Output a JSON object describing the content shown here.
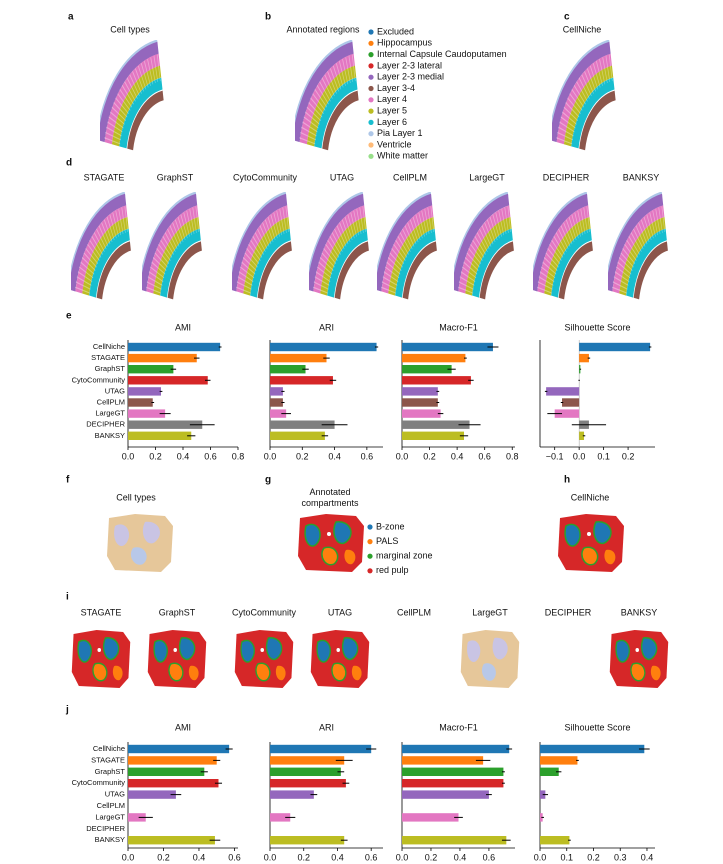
{
  "panel_a": {
    "letter": "a",
    "title": "Cell types"
  },
  "panel_b": {
    "letter": "b",
    "title": "Annotated regions",
    "legend": [
      {
        "name": "Excluded",
        "color": "#1f77b4"
      },
      {
        "name": "Hippocampus",
        "color": "#ff7f0e"
      },
      {
        "name": "Internal Capsule Caudoputamen",
        "color": "#2ca02c"
      },
      {
        "name": "Layer 2-3 lateral",
        "color": "#d62728"
      },
      {
        "name": "Layer 2-3 medial",
        "color": "#9467bd"
      },
      {
        "name": "Layer 3-4",
        "color": "#8c564b"
      },
      {
        "name": "Layer 4",
        "color": "#e377c2"
      },
      {
        "name": "Layer 5",
        "color": "#bcbd22"
      },
      {
        "name": "Layer 6",
        "color": "#17becf"
      },
      {
        "name": "Pia Layer 1",
        "color": "#aec7e8"
      },
      {
        "name": "Ventricle",
        "color": "#ffbb78"
      },
      {
        "name": "White matter",
        "color": "#98df8a"
      }
    ]
  },
  "panel_c": {
    "letter": "c",
    "title": "CellNiche"
  },
  "panel_d": {
    "letter": "d",
    "methods": [
      "STAGATE",
      "GraphST",
      "CytoCommunity",
      "UTAG",
      "CellPLM",
      "LargeGT",
      "DECIPHER",
      "BANKSY"
    ]
  },
  "panel_e": {
    "letter": "e"
  },
  "panel_f": {
    "letter": "f",
    "title": "Cell types"
  },
  "panel_g": {
    "letter": "g",
    "title": "Annotated compartments",
    "legend": [
      {
        "name": "B-zone",
        "color": "#1f77b4"
      },
      {
        "name": "PALS",
        "color": "#ff7f0e"
      },
      {
        "name": "marginal zone",
        "color": "#2ca02c"
      },
      {
        "name": "red pulp",
        "color": "#d62728"
      }
    ]
  },
  "panel_h": {
    "letter": "h",
    "title": "CellNiche"
  },
  "panel_i": {
    "letter": "i",
    "methods": [
      "STAGATE",
      "GraphST",
      "CytoCommunity",
      "UTAG",
      "CellPLM",
      "LargeGT",
      "DECIPHER",
      "BANKSY"
    ]
  },
  "panel_j": {
    "letter": "j"
  },
  "bar_categories": [
    "CellNiche",
    "STAGATE",
    "GraphST",
    "CytoCommunity",
    "UTAG",
    "CellPLM",
    "LargeGT",
    "DECIPHER",
    "BANKSY"
  ],
  "bar_colors": [
    "#1f77b4",
    "#ff7f0e",
    "#2ca02c",
    "#d62728",
    "#9467bd",
    "#8c564b",
    "#e377c2",
    "#7f7f7f",
    "#bcbd22"
  ],
  "chart_data": [
    {
      "type": "bar",
      "title": "AMI",
      "values": [
        0.67,
        0.5,
        0.33,
        0.58,
        0.24,
        0.18,
        0.27,
        0.54,
        0.46
      ],
      "errors": [
        0.01,
        0.02,
        0.02,
        0.02,
        0.01,
        0.01,
        0.04,
        0.09,
        0.03
      ],
      "xlim": [
        0,
        0.8
      ],
      "xticks": [
        {
          "value": 0,
          "label": "0.0"
        },
        0.2,
        0.4,
        0.6,
        0.8
      ]
    },
    {
      "type": "bar",
      "title": "ARI",
      "values": [
        0.66,
        0.35,
        0.22,
        0.39,
        0.08,
        0.08,
        0.1,
        0.4,
        0.34
      ],
      "errors": [
        0.01,
        0.02,
        0.02,
        0.02,
        0.01,
        0.01,
        0.03,
        0.08,
        0.02
      ],
      "xlim": [
        0,
        0.7
      ],
      "xticks": [
        {
          "value": 0,
          "label": "0.0"
        },
        0.2,
        0.4,
        0.6
      ]
    },
    {
      "type": "bar",
      "title": "Macro-F1",
      "values": [
        0.66,
        0.46,
        0.36,
        0.5,
        0.26,
        0.26,
        0.28,
        0.49,
        0.45
      ],
      "errors": [
        0.04,
        0.01,
        0.03,
        0.02,
        0.01,
        0.01,
        0.02,
        0.08,
        0.03
      ],
      "xlim": [
        0,
        0.82
      ],
      "xticks": [
        {
          "value": 0,
          "label": "0.0"
        },
        0.2,
        0.4,
        0.6,
        0.8
      ]
    },
    {
      "type": "bar",
      "title": "Silhouette Score",
      "values": [
        0.29,
        0.04,
        0.005,
        0,
        -0.135,
        -0.07,
        -0.1,
        0.04,
        0.02
      ],
      "errors": [
        0.005,
        0.005,
        0.003,
        0.003,
        0.005,
        0.005,
        0.03,
        0.07,
        0.005
      ],
      "xlim": [
        -0.16,
        0.31
      ],
      "xticks": [
        {
          "value": -0.1,
          "label": "−0.1"
        },
        {
          "value": 0,
          "label": "0.0"
        },
        0.1,
        0.2
      ]
    },
    {
      "type": "bar",
      "title": "AMI",
      "values": [
        0.57,
        0.5,
        0.43,
        0.51,
        0.27,
        null,
        0.1,
        null,
        0.49
      ],
      "errors": [
        0.02,
        0.02,
        0.02,
        0.02,
        0.03,
        null,
        0.04,
        null,
        0.03
      ],
      "xlim": [
        0,
        0.62
      ],
      "xticks": [
        {
          "value": 0,
          "label": "0.0"
        },
        0.2,
        0.4,
        0.6
      ]
    },
    {
      "type": "bar",
      "title": "ARI",
      "values": [
        0.6,
        0.44,
        0.42,
        0.45,
        0.26,
        null,
        0.12,
        null,
        0.44
      ],
      "errors": [
        0.03,
        0.05,
        0.02,
        0.02,
        0.02,
        null,
        0.03,
        null,
        0.02
      ],
      "xlim": [
        0,
        0.67
      ],
      "xticks": [
        {
          "value": 0,
          "label": "0.0"
        },
        0.2,
        0.4,
        0.6
      ]
    },
    {
      "type": "bar",
      "title": "Macro-F1",
      "values": [
        0.74,
        0.56,
        0.7,
        0.7,
        0.6,
        null,
        0.39,
        null,
        0.72
      ],
      "errors": [
        0.02,
        0.05,
        0.01,
        0.01,
        0.02,
        null,
        0.03,
        null,
        0.03
      ],
      "xlim": [
        0,
        0.78
      ],
      "xticks": [
        {
          "value": 0,
          "label": "0.0"
        },
        0.2,
        0.4,
        0.6
      ]
    },
    {
      "type": "bar",
      "title": "Silhouette Score",
      "values": [
        0.39,
        0.14,
        0.07,
        null,
        0.02,
        null,
        0.01,
        null,
        0.11
      ],
      "errors": [
        0.02,
        0.005,
        0.01,
        null,
        0.01,
        null,
        0.005,
        null,
        0.005
      ],
      "xlim": [
        0,
        0.43
      ],
      "xticks": [
        {
          "value": 0,
          "label": "0.0"
        },
        0.1,
        0.2,
        0.3,
        0.4
      ]
    }
  ]
}
